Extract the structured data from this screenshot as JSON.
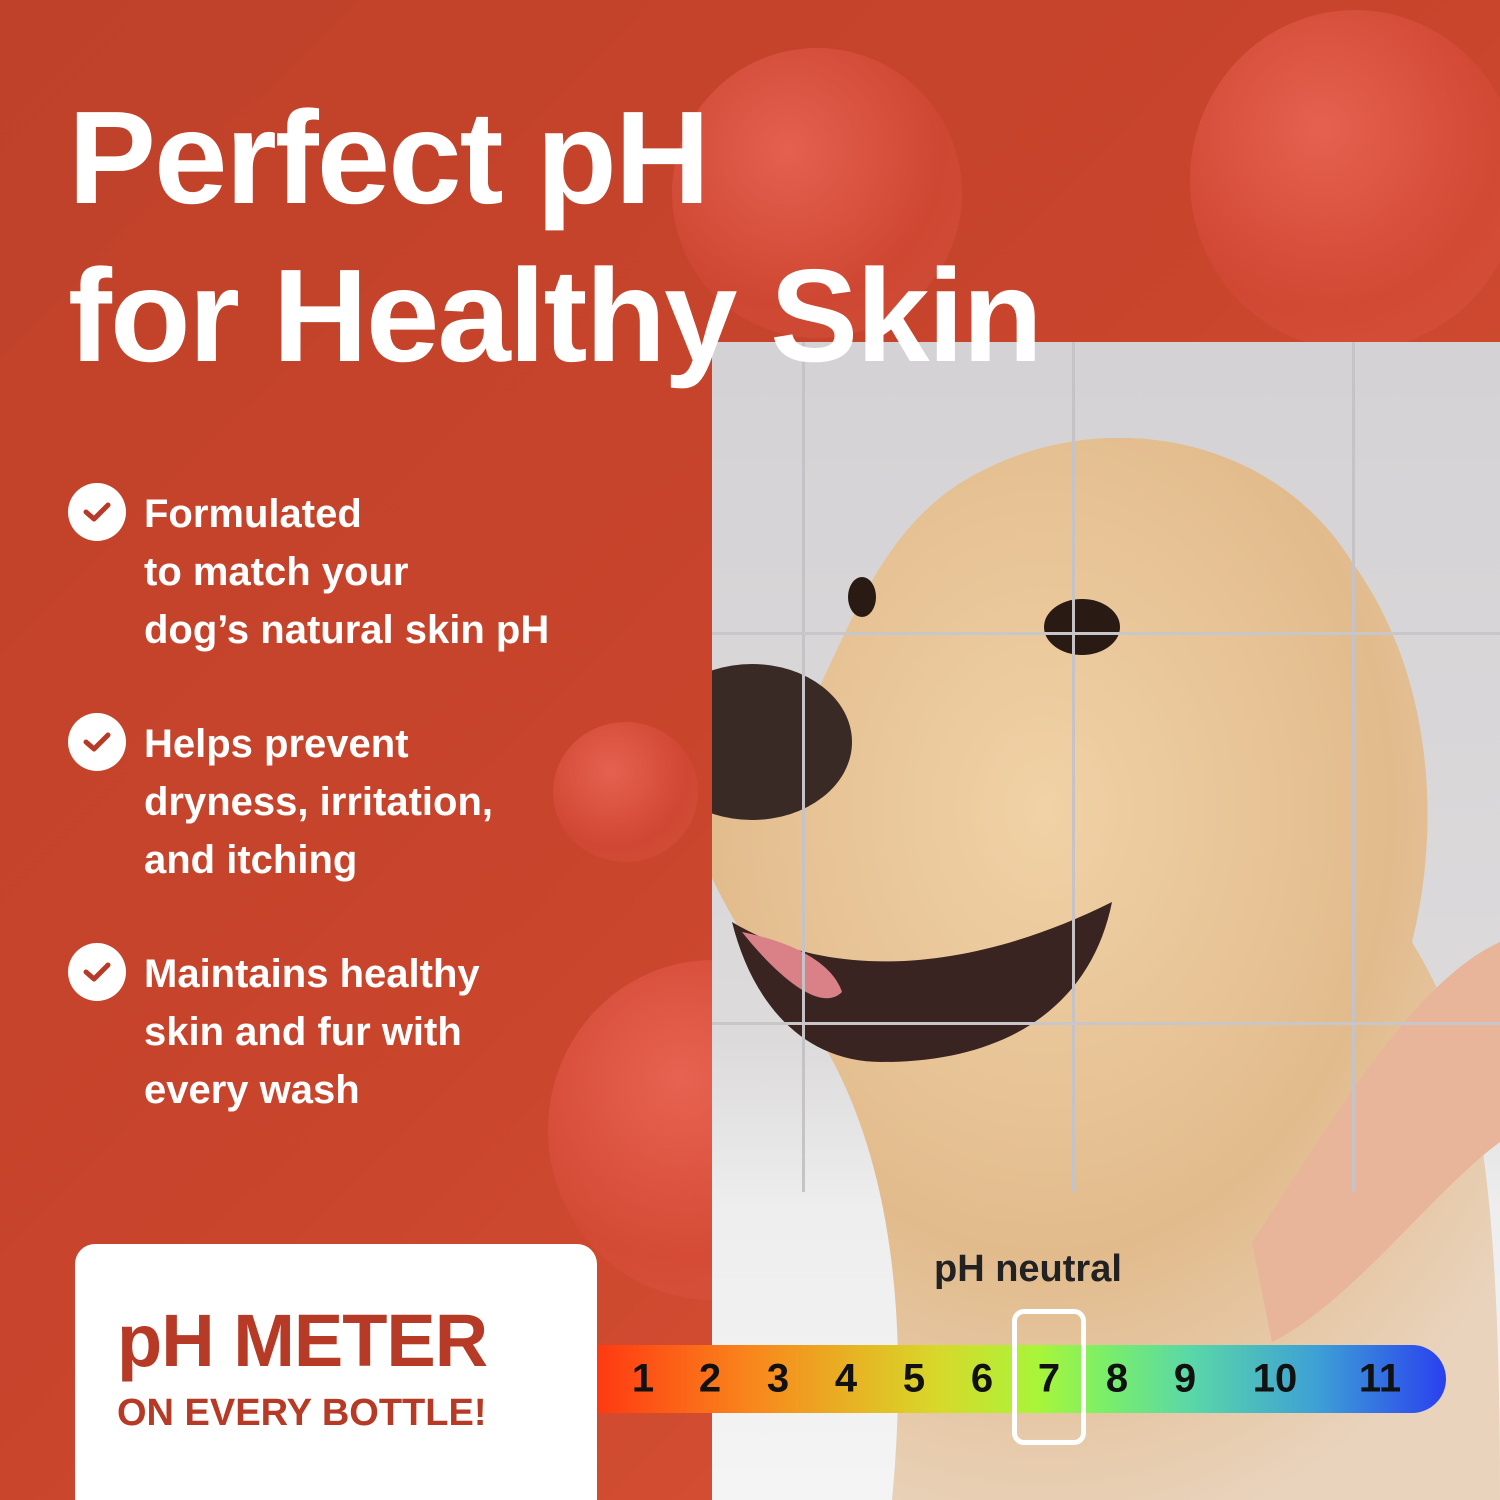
{
  "headline": {
    "line1": "Perfect pH",
    "line2": "for Healthy Skin"
  },
  "benefits": [
    {
      "icon": "check-circle-icon",
      "lines": [
        "Formulated",
        "to match your",
        "dog’s natural skin pH"
      ]
    },
    {
      "icon": "check-circle-icon",
      "lines": [
        "Helps prevent",
        "dryness, irritation,",
        "and itching"
      ]
    },
    {
      "icon": "check-circle-icon",
      "lines": [
        "Maintains healthy",
        "skin and fur with",
        "every wash"
      ]
    }
  ],
  "badge": {
    "title": "pH METER",
    "subtitle": "ON EVERY BOTTLE!"
  },
  "ph_scale": {
    "label": "pH neutral",
    "values": [
      "1",
      "2",
      "3",
      "4",
      "5",
      "6",
      "7",
      "8",
      "9",
      "10",
      "11"
    ],
    "highlighted": "7"
  },
  "colors": {
    "background": "#c4432b",
    "accent_text": "#b63a25",
    "white": "#ffffff"
  }
}
